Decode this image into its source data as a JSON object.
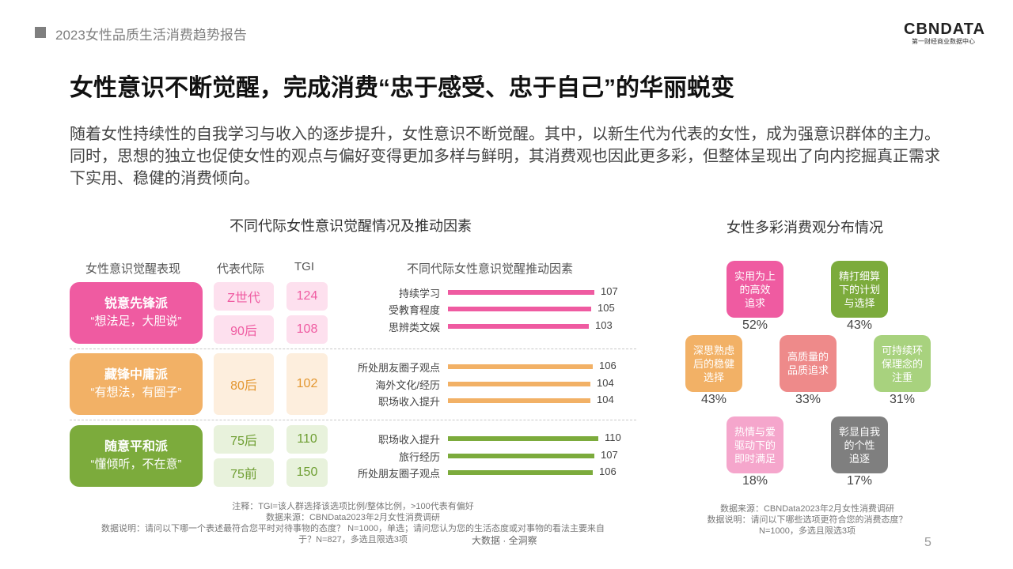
{
  "header": {
    "report_title": "2023女性品质生活消费趋势报告"
  },
  "logo": {
    "main": "CBNDATA",
    "sub": "第一财经商业数据中心"
  },
  "title": "女性意识不断觉醒，完成消费“忠于感受、忠于自己”的华丽蜕变",
  "intro": "随着女性持续性的自我学习与收入的逐步提升，女性意识不断觉醒。其中，以新生代为代表的女性，成为强意识群体的主力。同时，思想的独立也促使女性的观点与偏好变得更加多样与鲜明，其消费观也因此更多彩，但整体呈现出了向内挖掘真正需求下实用、稳健的消费倾向。",
  "left_section": {
    "title": "不同代际女性意识觉醒情况及推动因素",
    "col_expression": "女性意识觉醒表现",
    "col_generation": "代表代际",
    "col_tgi": "TGI",
    "col_factors": "不同代际女性意识觉醒推动因素",
    "groups": [
      {
        "name": "锐意先锋派",
        "slogan": "“想法足，大胆说”",
        "color": "#ef5ba1"
      },
      {
        "name": "藏锋中庸派",
        "slogan": "“有想法，有圈子”",
        "color": "#f2b166"
      },
      {
        "name": "随意平和派",
        "slogan": "“懂倾听，不在意”",
        "color": "#7cab3c"
      }
    ],
    "generations": [
      {
        "gen": "Z世代",
        "tgi": "124"
      },
      {
        "gen": "90后",
        "tgi": "108"
      },
      {
        "gen": "80后",
        "tgi": "102"
      },
      {
        "gen": "75后",
        "tgi": "110"
      },
      {
        "gen": "75前",
        "tgi": "150"
      }
    ],
    "notes": {
      "note1": "注释：TGI=该人群选择该选项比例/整体比例，>100代表有偏好",
      "note2": "数据来源：CBNData2023年2月女性消费调研",
      "note3": "数据说明：请问以下哪一个表述最符合您平时对待事物的态度？ N=1000，单选；请问您认为您的生活态度或对事物的看法主要来自",
      "note4": "于？N=827，多选且限选3项",
      "source_tag": "大数据 · 全洞察"
    }
  },
  "chart_data": [
    {
      "type": "bar",
      "orientation": "horizontal",
      "title": "不同代际女性意识觉醒推动因素",
      "series": [
        {
          "group": "锐意先锋派",
          "color": "#ef5ba1",
          "categories": [
            "持续学习",
            "受教育程度",
            "思辨类文娱"
          ],
          "values": [
            107,
            105,
            103
          ]
        },
        {
          "group": "藏锋中庸派",
          "color": "#f2b166",
          "categories": [
            "所处朋友圈子观点",
            "海外文化/经历",
            "职场收入提升"
          ],
          "values": [
            106,
            104,
            104
          ]
        },
        {
          "group": "随意平和派",
          "color": "#7cab3c",
          "categories": [
            "职场收入提升",
            "旅行经历",
            "所处朋友圈子观点"
          ],
          "values": [
            110,
            107,
            106
          ]
        }
      ]
    }
  ],
  "right_section": {
    "title": "女性多彩消费观分布情况",
    "tiles": [
      {
        "line1": "实用为上",
        "line2": "的高效",
        "line3": "追求",
        "pct": "52%",
        "color": "#ef5ba1"
      },
      {
        "line1": "精打细算",
        "line2": "下的计划",
        "line3": "与选择",
        "pct": "43%",
        "color": "#7cab3c"
      },
      {
        "line1": "深思熟虑",
        "line2": "后的稳健",
        "line3": "选择",
        "pct": "43%",
        "color": "#f2b166"
      },
      {
        "line1": "高质量的",
        "line2": "品质追求",
        "line3": "",
        "pct": "33%",
        "color": "#ee8a8a"
      },
      {
        "line1": "可持续环",
        "line2": "保理念的",
        "line3": "注重",
        "pct": "31%",
        "color": "#a8d27e"
      },
      {
        "line1": "热情与爱",
        "line2": "驱动下的",
        "line3": "即时满足",
        "pct": "18%",
        "color": "#f5a6cc"
      },
      {
        "line1": "彰显自我",
        "line2": "的个性",
        "line3": "追逐",
        "pct": "17%",
        "color": "#7f7f7f"
      }
    ],
    "notes": {
      "note1": "数据来源：CBNData2023年2月女性消费调研",
      "note2": "数据说明：请问以下哪些选项更符合您的消费态度？",
      "note3": "N=1000，多选且限选3项"
    }
  },
  "page_number": "5"
}
